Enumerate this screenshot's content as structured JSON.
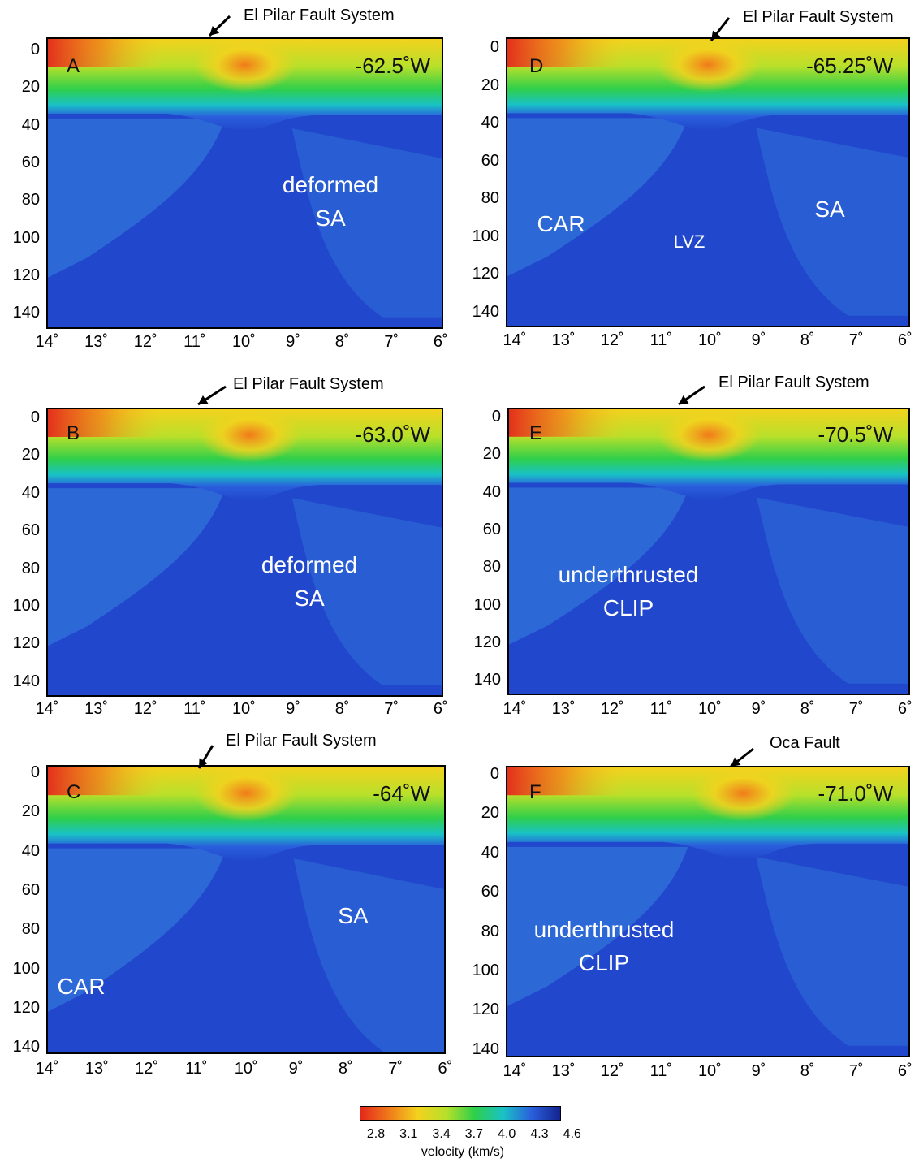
{
  "chart_data": [
    {
      "type": "heatmap",
      "panel": "A",
      "longitude_label": "-62.5˚W",
      "fault_label": "El Pilar Fault System",
      "region_labels": [
        "deformed\nSA"
      ],
      "y_ticks": [
        "0",
        "20",
        "40",
        "60",
        "80",
        "100",
        "120",
        "140"
      ],
      "x_ticks": [
        "14˚",
        "13˚",
        "12˚",
        "11˚",
        "10˚",
        "9˚",
        "8˚",
        "7˚",
        "6˚"
      ],
      "xlim": [
        14,
        6
      ],
      "ylim": [
        0,
        145
      ],
      "upper_layer_anomaly_center_x": 10.0,
      "layer_base_depth_km": 40
    },
    {
      "type": "heatmap",
      "panel": "B",
      "longitude_label": "-63.0˚W",
      "fault_label": "El Pilar Fault System",
      "region_labels": [
        "deformed\nSA"
      ],
      "y_ticks": [
        "0",
        "20",
        "40",
        "60",
        "80",
        "100",
        "120",
        "140"
      ],
      "x_ticks": [
        "14˚",
        "13˚",
        "12˚",
        "11˚",
        "10˚",
        "9˚",
        "8˚",
        "7˚",
        "6˚"
      ],
      "xlim": [
        14,
        6
      ],
      "ylim": [
        0,
        145
      ],
      "upper_layer_anomaly_center_x": 9.9,
      "layer_base_depth_km": 40
    },
    {
      "type": "heatmap",
      "panel": "C",
      "longitude_label": "-64˚W",
      "fault_label": "El Pilar Fault System",
      "region_labels": [
        "SA",
        "CAR"
      ],
      "y_ticks": [
        "0",
        "20",
        "40",
        "60",
        "80",
        "100",
        "120",
        "140"
      ],
      "x_ticks": [
        "14˚",
        "13˚",
        "12˚",
        "11˚",
        "10˚",
        "9˚",
        "8˚",
        "7˚",
        "6˚"
      ],
      "xlim": [
        14,
        6
      ],
      "ylim": [
        0,
        140
      ],
      "upper_layer_anomaly_center_x": 10.0,
      "layer_base_depth_km": 40
    },
    {
      "type": "heatmap",
      "panel": "D",
      "longitude_label": "-65.25˚W",
      "fault_label": "El Pilar Fault System",
      "region_labels": [
        "CAR",
        "LVZ",
        "SA"
      ],
      "y_ticks": [
        "0",
        "20",
        "40",
        "60",
        "80",
        "100",
        "120",
        "140"
      ],
      "x_ticks": [
        "14˚",
        "13˚",
        "12˚",
        "11˚",
        "10˚",
        "9˚",
        "8˚",
        "7˚",
        "6˚"
      ],
      "xlim": [
        14,
        6
      ],
      "ylim": [
        0,
        145
      ],
      "upper_layer_anomaly_center_x": 10.0,
      "layer_base_depth_km": 40
    },
    {
      "type": "heatmap",
      "panel": "E",
      "longitude_label": "-70.5˚W",
      "fault_label": "El Pilar Fault System",
      "region_labels": [
        "underthrusted\nCLIP"
      ],
      "y_ticks": [
        "0",
        "20",
        "40",
        "60",
        "80",
        "100",
        "120",
        "140"
      ],
      "x_ticks": [
        "14˚",
        "13˚",
        "12˚",
        "11˚",
        "10˚",
        "9˚",
        "8˚",
        "7˚",
        "6˚"
      ],
      "xlim": [
        14,
        6
      ],
      "ylim": [
        0,
        145
      ],
      "upper_layer_anomaly_center_x": 10.0,
      "layer_base_depth_km": 40
    },
    {
      "type": "heatmap",
      "panel": "F",
      "longitude_label": "-71.0˚W",
      "fault_label": "Oca Fault",
      "region_labels": [
        "underthrusted\nCLIP"
      ],
      "y_ticks": [
        "0",
        "20",
        "40",
        "60",
        "80",
        "100",
        "120",
        "140"
      ],
      "x_ticks": [
        "14˚",
        "13˚",
        "12˚",
        "11˚",
        "10˚",
        "9˚",
        "8˚",
        "7˚",
        "6˚"
      ],
      "xlim": [
        14,
        6
      ],
      "ylim": [
        0,
        145
      ],
      "upper_layer_anomaly_center_x": 9.3,
      "layer_base_depth_km": 40
    }
  ],
  "colorbar": {
    "ticks": [
      "2.8",
      "3.1",
      "3.4",
      "3.7",
      "4.0",
      "4.3",
      "4.6"
    ],
    "label": "velocity (km/s)",
    "colors": [
      "#e4281c",
      "#f07a1a",
      "#f3d21e",
      "#b8e02a",
      "#2fcf4a",
      "#19c2c5",
      "#2a5fdc",
      "#14238e"
    ]
  },
  "colors": {
    "deep_mantle": "#2148cc",
    "slow_mantle": "#2f6fd8",
    "region_text": "#ffffff"
  }
}
